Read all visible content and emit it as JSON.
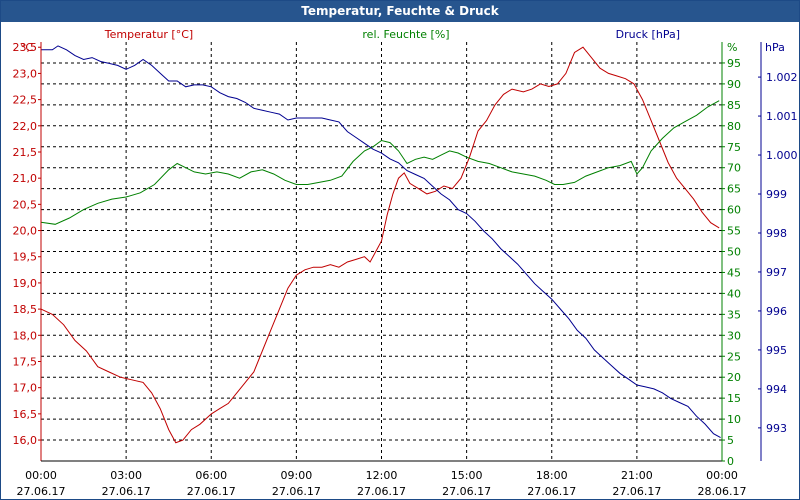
{
  "window": {
    "title": "Temperatur, Feuchte & Druck"
  },
  "colors": {
    "temperature": "#c00000",
    "humidity": "#008000",
    "pressure": "#000090",
    "grid": "#000000",
    "titlebar": "#27558e"
  },
  "chart_data": {
    "type": "line",
    "title": "Temperatur, Feuchte & Druck",
    "x_ticks": [
      {
        "time": "00:00",
        "date": "27.06.17"
      },
      {
        "time": "03:00",
        "date": "27.06.17"
      },
      {
        "time": "06:00",
        "date": "27.06.17"
      },
      {
        "time": "09:00",
        "date": "27.06.17"
      },
      {
        "time": "12:00",
        "date": "27.06.17"
      },
      {
        "time": "15:00",
        "date": "27.06.17"
      },
      {
        "time": "18:00",
        "date": "27.06.17"
      },
      {
        "time": "21:00",
        "date": "27.06.17"
      },
      {
        "time": "00:00",
        "date": "28.06.17"
      }
    ],
    "xlim_hours": [
      0,
      24
    ],
    "axes": {
      "temperature": {
        "unit": "°C",
        "ylim": [
          15.6,
          23.6
        ],
        "ticks": [
          "16,0",
          "16,5",
          "17,0",
          "17,5",
          "18,0",
          "18,5",
          "19,0",
          "19,5",
          "20,0",
          "20,5",
          "21,0",
          "21,5",
          "22,0",
          "22,5",
          "23,0",
          "23,5"
        ],
        "tick_values": [
          16.0,
          16.5,
          17.0,
          17.5,
          18.0,
          18.5,
          19.0,
          19.5,
          20.0,
          20.5,
          21.0,
          21.5,
          22.0,
          22.5,
          23.0,
          23.5
        ]
      },
      "humidity": {
        "unit": "%",
        "ylim": [
          0,
          100
        ],
        "ticks": [
          "0",
          "5",
          "10",
          "15",
          "20",
          "25",
          "30",
          "35",
          "40",
          "45",
          "50",
          "55",
          "60",
          "65",
          "70",
          "75",
          "80",
          "85",
          "90",
          "95"
        ],
        "tick_values": [
          0,
          5,
          10,
          15,
          20,
          25,
          30,
          35,
          40,
          45,
          50,
          55,
          60,
          65,
          70,
          75,
          80,
          85,
          90,
          95
        ]
      },
      "pressure": {
        "unit": "hPa",
        "ylim": [
          992.15,
          1002.9
        ],
        "ticks": [
          "993",
          "994",
          "995",
          "996",
          "997",
          "998",
          "999",
          "1.000",
          "1.001",
          "1.002"
        ],
        "tick_values": [
          993,
          994,
          995,
          996,
          997,
          998,
          999,
          1000,
          1001,
          1002
        ]
      }
    },
    "series": [
      {
        "name": "Temperatur [°C]",
        "axis": "temperature",
        "points": [
          [
            0,
            18.5
          ],
          [
            0.4,
            18.4
          ],
          [
            0.8,
            18.2
          ],
          [
            1.2,
            17.9
          ],
          [
            1.6,
            17.7
          ],
          [
            2.0,
            17.4
          ],
          [
            2.4,
            17.3
          ],
          [
            2.8,
            17.2
          ],
          [
            3.2,
            17.15
          ],
          [
            3.6,
            17.1
          ],
          [
            3.9,
            16.9
          ],
          [
            4.2,
            16.6
          ],
          [
            4.5,
            16.2
          ],
          [
            4.75,
            15.95
          ],
          [
            5.0,
            16.0
          ],
          [
            5.3,
            16.2
          ],
          [
            5.6,
            16.3
          ],
          [
            6.0,
            16.5
          ],
          [
            6.3,
            16.6
          ],
          [
            6.6,
            16.7
          ],
          [
            6.9,
            16.9
          ],
          [
            7.2,
            17.1
          ],
          [
            7.5,
            17.3
          ],
          [
            7.8,
            17.7
          ],
          [
            8.1,
            18.1
          ],
          [
            8.4,
            18.5
          ],
          [
            8.7,
            18.9
          ],
          [
            9.0,
            19.15
          ],
          [
            9.3,
            19.25
          ],
          [
            9.6,
            19.3
          ],
          [
            9.9,
            19.3
          ],
          [
            10.2,
            19.35
          ],
          [
            10.5,
            19.3
          ],
          [
            10.8,
            19.4
          ],
          [
            11.1,
            19.45
          ],
          [
            11.4,
            19.5
          ],
          [
            11.6,
            19.4
          ],
          [
            11.8,
            19.6
          ],
          [
            12.0,
            19.8
          ],
          [
            12.2,
            20.3
          ],
          [
            12.4,
            20.7
          ],
          [
            12.6,
            21.0
          ],
          [
            12.8,
            21.1
          ],
          [
            13.0,
            20.9
          ],
          [
            13.3,
            20.8
          ],
          [
            13.6,
            20.7
          ],
          [
            13.9,
            20.75
          ],
          [
            14.2,
            20.85
          ],
          [
            14.5,
            20.8
          ],
          [
            14.8,
            21.0
          ],
          [
            15.1,
            21.4
          ],
          [
            15.4,
            21.9
          ],
          [
            15.7,
            22.1
          ],
          [
            16.0,
            22.4
          ],
          [
            16.3,
            22.6
          ],
          [
            16.6,
            22.7
          ],
          [
            17.0,
            22.65
          ],
          [
            17.3,
            22.7
          ],
          [
            17.6,
            22.8
          ],
          [
            17.9,
            22.75
          ],
          [
            18.2,
            22.8
          ],
          [
            18.5,
            23.0
          ],
          [
            18.8,
            23.4
          ],
          [
            19.1,
            23.5
          ],
          [
            19.4,
            23.3
          ],
          [
            19.7,
            23.1
          ],
          [
            20.0,
            23.0
          ],
          [
            20.3,
            22.95
          ],
          [
            20.6,
            22.9
          ],
          [
            20.9,
            22.8
          ],
          [
            21.2,
            22.5
          ],
          [
            21.5,
            22.1
          ],
          [
            21.8,
            21.7
          ],
          [
            22.1,
            21.3
          ],
          [
            22.4,
            21.0
          ],
          [
            22.7,
            20.8
          ],
          [
            23.0,
            20.6
          ],
          [
            23.3,
            20.35
          ],
          [
            23.6,
            20.15
          ],
          [
            23.9,
            20.05
          ]
        ]
      },
      {
        "name": "rel. Feuchte [%]",
        "axis": "humidity",
        "points": [
          [
            0,
            57
          ],
          [
            0.5,
            56.5
          ],
          [
            1.0,
            58
          ],
          [
            1.5,
            60
          ],
          [
            2.0,
            61.5
          ],
          [
            2.5,
            62.5
          ],
          [
            3.0,
            63
          ],
          [
            3.5,
            64
          ],
          [
            4.0,
            66
          ],
          [
            4.5,
            69.5
          ],
          [
            4.8,
            71
          ],
          [
            5.1,
            70
          ],
          [
            5.4,
            69
          ],
          [
            5.8,
            68.5
          ],
          [
            6.2,
            69
          ],
          [
            6.6,
            68.5
          ],
          [
            7.0,
            67.5
          ],
          [
            7.4,
            69
          ],
          [
            7.8,
            69.5
          ],
          [
            8.2,
            68.5
          ],
          [
            8.6,
            67
          ],
          [
            9.0,
            66
          ],
          [
            9.4,
            66
          ],
          [
            9.8,
            66.5
          ],
          [
            10.2,
            67
          ],
          [
            10.6,
            68
          ],
          [
            11.0,
            71.5
          ],
          [
            11.4,
            74
          ],
          [
            11.7,
            75
          ],
          [
            12.0,
            76.5
          ],
          [
            12.3,
            76
          ],
          [
            12.6,
            74
          ],
          [
            12.9,
            71
          ],
          [
            13.2,
            72
          ],
          [
            13.5,
            72.5
          ],
          [
            13.8,
            72
          ],
          [
            14.1,
            73
          ],
          [
            14.4,
            74
          ],
          [
            14.7,
            73.5
          ],
          [
            15.0,
            72.5
          ],
          [
            15.4,
            71.5
          ],
          [
            15.8,
            71
          ],
          [
            16.2,
            70
          ],
          [
            16.6,
            69
          ],
          [
            17.0,
            68.5
          ],
          [
            17.4,
            68
          ],
          [
            17.8,
            67
          ],
          [
            18.1,
            66
          ],
          [
            18.4,
            66
          ],
          [
            18.8,
            66.5
          ],
          [
            19.2,
            68
          ],
          [
            19.6,
            69
          ],
          [
            20.0,
            70
          ],
          [
            20.4,
            70.5
          ],
          [
            20.8,
            71.5
          ],
          [
            21.0,
            68.5
          ],
          [
            21.2,
            70
          ],
          [
            21.5,
            74
          ],
          [
            21.9,
            77
          ],
          [
            22.3,
            79.5
          ],
          [
            22.7,
            81
          ],
          [
            23.1,
            82.5
          ],
          [
            23.5,
            84.5
          ],
          [
            23.9,
            86
          ]
        ]
      },
      {
        "name": "Druck [hPa]",
        "axis": "pressure",
        "points": [
          [
            0,
            1002.7
          ],
          [
            0.4,
            1002.7
          ],
          [
            0.6,
            1002.8
          ],
          [
            0.9,
            1002.7
          ],
          [
            1.2,
            1002.55
          ],
          [
            1.5,
            1002.45
          ],
          [
            1.8,
            1002.5
          ],
          [
            2.1,
            1002.4
          ],
          [
            2.4,
            1002.35
          ],
          [
            2.7,
            1002.3
          ],
          [
            3.0,
            1002.2
          ],
          [
            3.3,
            1002.3
          ],
          [
            3.6,
            1002.45
          ],
          [
            3.9,
            1002.3
          ],
          [
            4.2,
            1002.1
          ],
          [
            4.5,
            1001.9
          ],
          [
            4.8,
            1001.9
          ],
          [
            5.1,
            1001.75
          ],
          [
            5.4,
            1001.8
          ],
          [
            5.7,
            1001.8
          ],
          [
            6.0,
            1001.75
          ],
          [
            6.3,
            1001.6
          ],
          [
            6.6,
            1001.5
          ],
          [
            6.9,
            1001.45
          ],
          [
            7.2,
            1001.35
          ],
          [
            7.5,
            1001.2
          ],
          [
            7.8,
            1001.15
          ],
          [
            8.1,
            1001.1
          ],
          [
            8.4,
            1001.05
          ],
          [
            8.7,
            1000.9
          ],
          [
            9.0,
            1000.95
          ],
          [
            9.3,
            1000.95
          ],
          [
            9.6,
            1000.95
          ],
          [
            9.9,
            1000.95
          ],
          [
            10.2,
            1000.9
          ],
          [
            10.5,
            1000.85
          ],
          [
            10.8,
            1000.6
          ],
          [
            11.1,
            1000.45
          ],
          [
            11.4,
            1000.3
          ],
          [
            11.7,
            1000.15
          ],
          [
            12.0,
            1000.05
          ],
          [
            12.3,
            999.9
          ],
          [
            12.6,
            999.8
          ],
          [
            12.9,
            999.6
          ],
          [
            13.2,
            999.5
          ],
          [
            13.5,
            999.4
          ],
          [
            13.8,
            999.2
          ],
          [
            14.1,
            999.0
          ],
          [
            14.4,
            998.85
          ],
          [
            14.7,
            998.6
          ],
          [
            15.0,
            998.5
          ],
          [
            15.3,
            998.3
          ],
          [
            15.6,
            998.05
          ],
          [
            15.9,
            997.85
          ],
          [
            16.2,
            997.6
          ],
          [
            16.5,
            997.4
          ],
          [
            16.8,
            997.2
          ],
          [
            17.1,
            996.95
          ],
          [
            17.4,
            996.7
          ],
          [
            17.7,
            996.5
          ],
          [
            18.0,
            996.3
          ],
          [
            18.3,
            996.05
          ],
          [
            18.6,
            995.8
          ],
          [
            18.9,
            995.5
          ],
          [
            19.2,
            995.3
          ],
          [
            19.5,
            995.0
          ],
          [
            19.8,
            994.8
          ],
          [
            20.1,
            994.6
          ],
          [
            20.4,
            994.4
          ],
          [
            20.7,
            994.25
          ],
          [
            21.0,
            994.1
          ],
          [
            21.3,
            994.05
          ],
          [
            21.6,
            994.0
          ],
          [
            21.9,
            993.9
          ],
          [
            22.2,
            993.75
          ],
          [
            22.5,
            993.65
          ],
          [
            22.8,
            993.55
          ],
          [
            23.1,
            993.3
          ],
          [
            23.4,
            993.1
          ],
          [
            23.7,
            992.85
          ],
          [
            23.95,
            992.75
          ]
        ]
      }
    ]
  }
}
